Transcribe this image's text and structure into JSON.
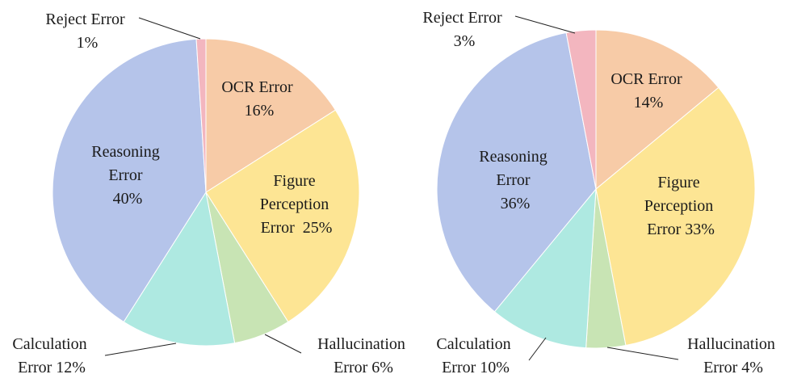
{
  "chart_data": [
    {
      "type": "pie",
      "slices": [
        {
          "name": "OCR Error",
          "value": 16,
          "label": "16%",
          "color": "#F7CBA7"
        },
        {
          "name": "Figure Perception Error",
          "value": 25,
          "label": "25%",
          "color": "#FDE594"
        },
        {
          "name": "Hallucination Error",
          "value": 6,
          "label": "6%",
          "color": "#C8E4B4"
        },
        {
          "name": "Calculation Error",
          "value": 12,
          "label": "12%",
          "color": "#AEE9E1"
        },
        {
          "name": "Reasoning Error",
          "value": 40,
          "label": "40%",
          "color": "#B5C4EA"
        },
        {
          "name": "Reject Error",
          "value": 1,
          "label": "1%",
          "color": "#F3B6BF"
        }
      ],
      "labels": {
        "ocr": [
          "OCR Error",
          "16%"
        ],
        "figure": [
          "Figure",
          "Perception",
          "Error  25%"
        ],
        "hallucination": [
          "Hallucination",
          "Error 6%"
        ],
        "calculation": [
          "Calculation",
          "Error 12%"
        ],
        "reasoning": [
          "Reasoning",
          "Error",
          "40%"
        ],
        "reject": [
          "Reject Error",
          "1%"
        ]
      }
    },
    {
      "type": "pie",
      "slices": [
        {
          "name": "OCR Error",
          "value": 14,
          "label": "14%",
          "color": "#F7CBA7"
        },
        {
          "name": "Figure Perception Error",
          "value": 33,
          "label": "33%",
          "color": "#FDE594"
        },
        {
          "name": "Hallucination Error",
          "value": 4,
          "label": "4%",
          "color": "#C8E4B4"
        },
        {
          "name": "Calculation Error",
          "value": 10,
          "label": "10%",
          "color": "#AEE9E1"
        },
        {
          "name": "Reasoning Error",
          "value": 36,
          "label": "36%",
          "color": "#B5C4EA"
        },
        {
          "name": "Reject Error",
          "value": 3,
          "label": "3%",
          "color": "#F3B6BF"
        }
      ],
      "labels": {
        "ocr": [
          "OCR Error",
          "14%"
        ],
        "figure": [
          "Figure",
          "Perception",
          "Error 33%"
        ],
        "hallucination": [
          "Hallucination",
          "Error 4%"
        ],
        "calculation": [
          "Calculation",
          "Error 10%"
        ],
        "reasoning": [
          "Reasoning",
          "Error",
          "36%"
        ],
        "reject": [
          "Reject Error",
          "3%"
        ]
      }
    }
  ]
}
